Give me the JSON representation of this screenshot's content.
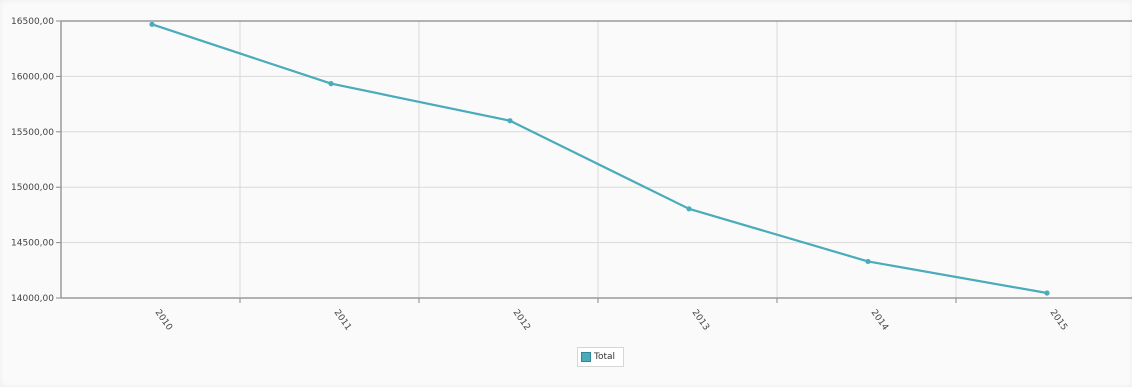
{
  "chart_data": {
    "type": "line",
    "categories": [
      "2010",
      "2011",
      "2012",
      "2013",
      "2014",
      "2015"
    ],
    "series": [
      {
        "name": "Total",
        "values": [
          16470,
          15935,
          15600,
          14805,
          14330,
          14045
        ],
        "color": "#4aabbb"
      }
    ],
    "yticks": [
      "16500,00",
      "16000,00",
      "15500,00",
      "15000,00",
      "14500,00",
      "14000,00"
    ],
    "ytick_values": [
      16500,
      16000,
      15500,
      15000,
      14500,
      14000
    ],
    "ylim": [
      14000,
      16500
    ],
    "grid": true,
    "legend_position": "bottom-center"
  }
}
